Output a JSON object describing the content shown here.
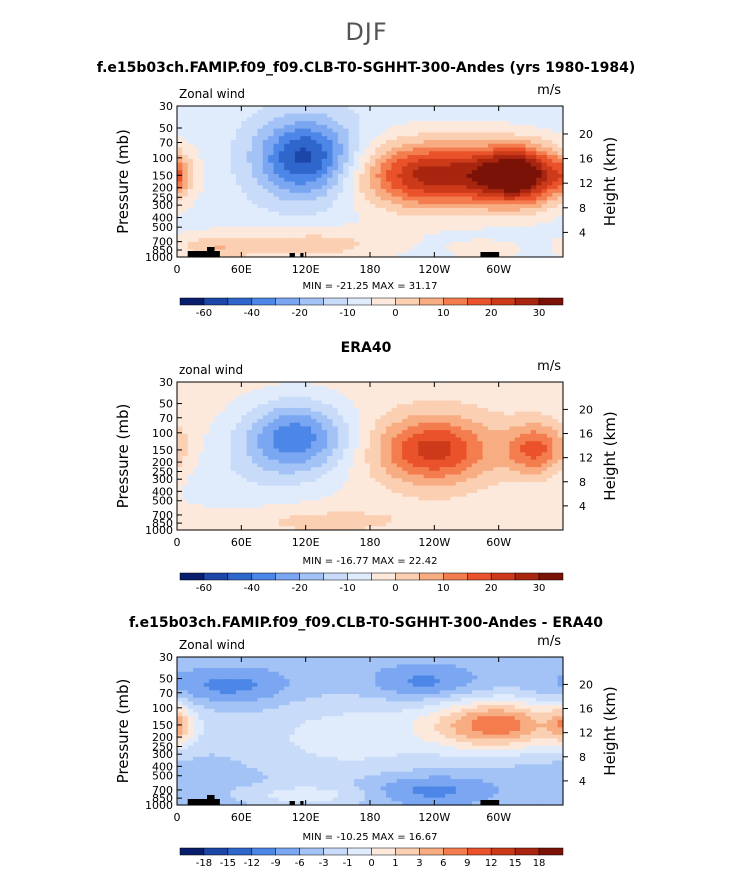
{
  "suptitle": "DJF",
  "colors": {
    "neg": [
      "#081d6b",
      "#1c46a8",
      "#2f66cc",
      "#4c87e8",
      "#7aa6f2",
      "#a3c2f5",
      "#c8dcfa",
      "#e0ecfc"
    ],
    "pos": [
      "#fde9dc",
      "#fbcfb2",
      "#f8ac82",
      "#f47d4f",
      "#e9522a",
      "#cc3a1a",
      "#a8250f",
      "#7a1208"
    ]
  },
  "chart_data": [
    {
      "type": "heatmap",
      "title": "f.e15b03ch.FAMIP.f09_f09.CLB-T0-SGHHT-300-Andes (yrs 1980-1984)",
      "left_label": "Zonal wind",
      "right_label": "m/s",
      "ylabel": "Pressure (mb)",
      "ylabel_right": "Height (km)",
      "xticks": [
        "0",
        "60E",
        "120E",
        "180",
        "120W",
        "60W"
      ],
      "yticks": [
        "30",
        "50",
        "70",
        "100",
        "150",
        "200",
        "250",
        "300",
        "400",
        "500",
        "700",
        "850",
        "1000"
      ],
      "yticks_right": [
        "20",
        "16",
        "12",
        "8",
        "4"
      ],
      "stats": "MIN = -21.25   MAX =  31.17",
      "colorbar_labels": [
        "-60",
        "-40",
        "-20",
        "-10",
        "0",
        "10",
        "20",
        "30"
      ],
      "background_level": 7,
      "features": [
        {
          "lon": 0,
          "p": 150,
          "amp": 2,
          "wlon": 8,
          "wp": 50
        },
        {
          "lon": 120,
          "p": 100,
          "amp": -6,
          "wlon": 32,
          "wp": 90
        },
        {
          "lon": 240,
          "p": 150,
          "amp": 7,
          "wlon": 50,
          "wp": 110
        },
        {
          "lon": 320,
          "p": 150,
          "amp": 8,
          "wlon": 28,
          "wp": 90
        },
        {
          "lon": 125,
          "p": 750,
          "amp": 2,
          "wlon": 55,
          "wp": 250
        },
        {
          "lon": 35,
          "p": 800,
          "amp": 2,
          "wlon": 25,
          "wp": 200
        },
        {
          "lon": 290,
          "p": 850,
          "amp": 1,
          "wlon": 25,
          "wp": 150
        }
      ],
      "has_topo": true
    },
    {
      "type": "heatmap",
      "title": "ERA40",
      "left_label": "zonal wind",
      "right_label": "m/s",
      "ylabel": "Pressure (mb)",
      "ylabel_right": "Height (km)",
      "xticks": [
        "0",
        "60E",
        "120E",
        "180",
        "120W",
        "60W"
      ],
      "yticks": [
        "30",
        "50",
        "70",
        "100",
        "150",
        "200",
        "250",
        "300",
        "400",
        "500",
        "700",
        "850",
        "1000"
      ],
      "yticks_right": [
        "20",
        "16",
        "12",
        "8",
        "4"
      ],
      "stats": "MIN = -16.77   MAX =  22.42",
      "colorbar_labels": [
        "-60",
        "-40",
        "-20",
        "-10",
        "0",
        "10",
        "20",
        "30"
      ],
      "background_level": 8,
      "features": [
        {
          "lon": 110,
          "p": 110,
          "amp": -5,
          "wlon": 35,
          "wp": 90
        },
        {
          "lon": 240,
          "p": 150,
          "amp": 5,
          "wlon": 38,
          "wp": 110
        },
        {
          "lon": 335,
          "p": 150,
          "amp": 4,
          "wlon": 20,
          "wp": 80
        },
        {
          "lon": 60,
          "p": 300,
          "amp": -1,
          "wlon": 60,
          "wp": 300
        },
        {
          "lon": 130,
          "p": 800,
          "amp": 1,
          "wlon": 60,
          "wp": 200
        }
      ],
      "has_topo": false
    },
    {
      "type": "heatmap",
      "title": "f.e15b03ch.FAMIP.f09_f09.CLB-T0-SGHHT-300-Andes - ERA40",
      "left_label": "Zonal wind",
      "right_label": "m/s",
      "ylabel": "Pressure (mb)",
      "ylabel_right": "Height (km)",
      "xticks": [
        "0",
        "60E",
        "120E",
        "180",
        "120W",
        "60W"
      ],
      "yticks": [
        "30",
        "50",
        "70",
        "100",
        "150",
        "200",
        "250",
        "300",
        "400",
        "500",
        "700",
        "850",
        "1000"
      ],
      "yticks_right": [
        "20",
        "16",
        "12",
        "8",
        "4"
      ],
      "stats": "MIN = -10.25   MAX =  16.67",
      "colorbar_labels": [
        "-18",
        "-15",
        "-12",
        "-9",
        "-6",
        "-3",
        "-1",
        "0",
        "1",
        "3",
        "6",
        "9",
        "12",
        "15",
        "18"
      ],
      "background_level": 5,
      "features": [
        {
          "lon": 300,
          "p": 150,
          "amp": 6,
          "wlon": 45,
          "wp": 80
        },
        {
          "lon": 0,
          "p": 150,
          "amp": 3,
          "wlon": 10,
          "wp": 60
        },
        {
          "lon": 160,
          "p": 200,
          "amp": 2,
          "wlon": 70,
          "wp": 200
        },
        {
          "lon": 230,
          "p": 55,
          "amp": -2,
          "wlon": 35,
          "wp": 18
        },
        {
          "lon": 50,
          "p": 60,
          "amp": -2,
          "wlon": 40,
          "wp": 20
        },
        {
          "lon": 120,
          "p": 800,
          "amp": 2,
          "wlon": 40,
          "wp": 150
        },
        {
          "lon": 235,
          "p": 700,
          "amp": -2,
          "wlon": 40,
          "wp": 200
        }
      ],
      "has_topo": true
    }
  ]
}
